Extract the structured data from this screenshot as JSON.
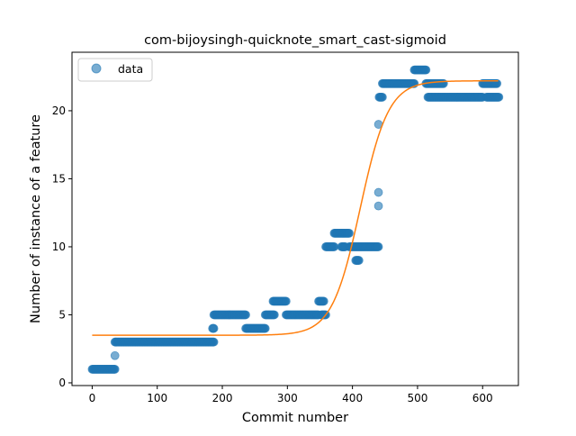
{
  "chart_data": {
    "type": "scatter",
    "title": "com-bijoysingh-quicknote_smart_cast-sigmoid",
    "xlabel": "Commit number",
    "ylabel": "Number of instance of a feature",
    "xlim": [
      -31,
      655
    ],
    "ylim": [
      -0.2,
      24.3
    ],
    "xticks": [
      0,
      100,
      200,
      300,
      400,
      500,
      600
    ],
    "yticks": [
      0,
      5,
      10,
      15,
      20
    ],
    "legend": {
      "position": "top-left",
      "entries": [
        "data"
      ]
    },
    "grid": false,
    "colors": {
      "data": "#1f77b4",
      "fit": "#ff7f0e"
    },
    "series": [
      {
        "name": "data",
        "kind": "points",
        "segments": [
          {
            "x_start": 0,
            "x_end": 35,
            "y": 1
          },
          {
            "x_start": 35,
            "x_end": 35,
            "y": 2
          },
          {
            "x_start": 35,
            "x_end": 187,
            "y": 3
          },
          {
            "x_start": 185,
            "x_end": 187,
            "y": 4
          },
          {
            "x_start": 187,
            "x_end": 236,
            "y": 5
          },
          {
            "x_start": 236,
            "x_end": 266,
            "y": 4
          },
          {
            "x_start": 266,
            "x_end": 280,
            "y": 5
          },
          {
            "x_start": 278,
            "x_end": 298,
            "y": 6
          },
          {
            "x_start": 298,
            "x_end": 348,
            "y": 5
          },
          {
            "x_start": 348,
            "x_end": 356,
            "y": 6
          },
          {
            "x_start": 352,
            "x_end": 359,
            "y": 5
          },
          {
            "x_start": 359,
            "x_end": 372,
            "y": 10
          },
          {
            "x_start": 372,
            "x_end": 395,
            "y": 11
          },
          {
            "x_start": 383,
            "x_end": 389,
            "y": 10
          },
          {
            "x_start": 395,
            "x_end": 440,
            "y": 10
          },
          {
            "x_start": 405,
            "x_end": 410,
            "y": 9
          },
          {
            "x_start": 440,
            "x_end": 440,
            "y": 19
          },
          {
            "x_start": 440,
            "x_end": 440,
            "y": 14
          },
          {
            "x_start": 440,
            "x_end": 440,
            "y": 13
          },
          {
            "x_start": 441,
            "x_end": 446,
            "y": 21
          },
          {
            "x_start": 446,
            "x_end": 495,
            "y": 22
          },
          {
            "x_start": 495,
            "x_end": 513,
            "y": 23
          },
          {
            "x_start": 513,
            "x_end": 540,
            "y": 22
          },
          {
            "x_start": 516,
            "x_end": 600,
            "y": 21
          },
          {
            "x_start": 600,
            "x_end": 622,
            "y": 22
          },
          {
            "x_start": 606,
            "x_end": 625,
            "y": 21
          }
        ]
      },
      {
        "name": "fit",
        "kind": "sigmoid",
        "params": {
          "lower": 3.5,
          "upper": 22.2,
          "midpoint": 412,
          "rate": 0.046
        },
        "x_range": [
          0,
          625
        ]
      }
    ]
  }
}
